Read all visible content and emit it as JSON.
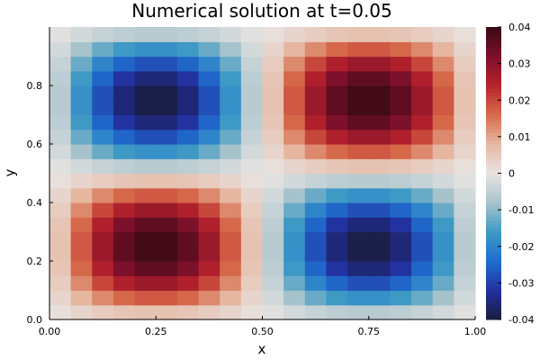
{
  "chart_data": {
    "type": "heatmap",
    "title": "Numerical solution at t=0.05",
    "xlabel": "x",
    "ylabel": "y",
    "xlim": [
      0,
      1
    ],
    "ylim": [
      0,
      1
    ],
    "grid_size": 20,
    "x_ticks": [
      {
        "value": 0.0,
        "label": "0.00"
      },
      {
        "value": 0.25,
        "label": "0.25"
      },
      {
        "value": 0.5,
        "label": "0.50"
      },
      {
        "value": 0.75,
        "label": "0.75"
      },
      {
        "value": 1.0,
        "label": "1.00"
      }
    ],
    "y_ticks": [
      {
        "value": 0.0,
        "label": "0.0"
      },
      {
        "value": 0.2,
        "label": "0.2"
      },
      {
        "value": 0.4,
        "label": "0.4"
      },
      {
        "value": 0.6,
        "label": "0.6"
      },
      {
        "value": 0.8,
        "label": "0.8"
      }
    ],
    "colorbar": {
      "min": -0.04,
      "max": 0.04,
      "ticks": [
        {
          "value": 0.04,
          "label": "0.04"
        },
        {
          "value": 0.03,
          "label": "0.03"
        },
        {
          "value": 0.02,
          "label": "0.02"
        },
        {
          "value": 0.01,
          "label": "0.01"
        },
        {
          "value": 0.0,
          "label": "0"
        },
        {
          "value": -0.01,
          "label": "-0.01"
        },
        {
          "value": -0.02,
          "label": "-0.02"
        },
        {
          "value": -0.03,
          "label": "-0.03"
        },
        {
          "value": -0.04,
          "label": "-0.04"
        }
      ],
      "colormap": [
        "#1a1d3d",
        "#2330a0",
        "#1f6fd0",
        "#3f9ac4",
        "#a9c4cc",
        "#e8e4e2",
        "#e6b8a3",
        "#d76a4b",
        "#b8232c",
        "#7b0f2a",
        "#3a0a14"
      ]
    },
    "field": "0.04 * sin(2*pi*x) * sin(2*pi*y), sampled at cell centers",
    "grid": false
  }
}
